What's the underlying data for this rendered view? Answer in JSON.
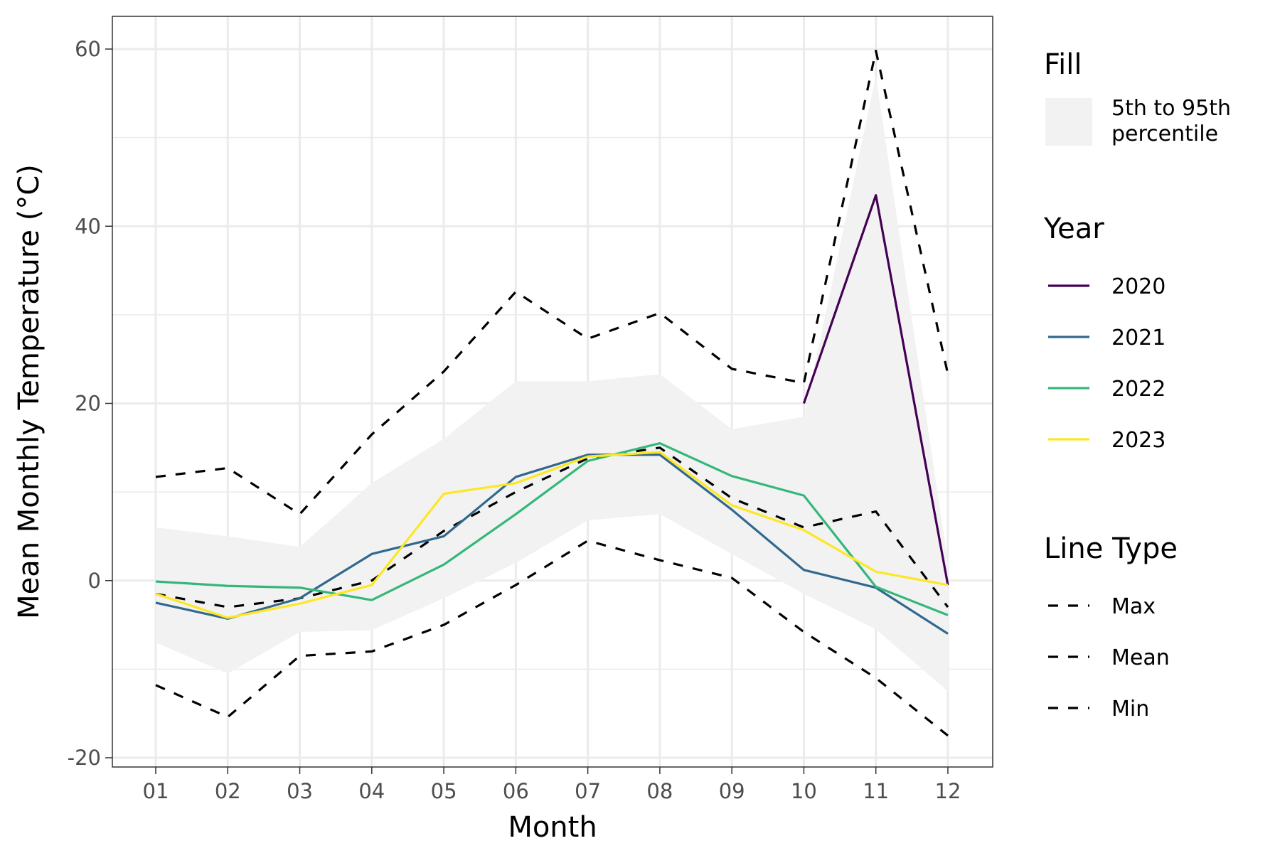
{
  "chart_data": {
    "type": "line",
    "xlabel": "Month",
    "ylabel": "Mean Monthly Temperature (°C)",
    "categories": [
      "01",
      "02",
      "03",
      "04",
      "05",
      "06",
      "07",
      "08",
      "09",
      "10",
      "11",
      "12"
    ],
    "ylim": [
      -21.5,
      64
    ],
    "y_ticks": [
      -20,
      0,
      20,
      40,
      60
    ],
    "y_tick_labels": [
      "-20",
      "0",
      "20",
      "40",
      "60"
    ],
    "grid": true,
    "legend_position": "right",
    "band": {
      "label": "5th to 95th\npercentile",
      "color": "#f2f2f2",
      "lower": [
        -7,
        -10.5,
        -5.8,
        -5.6,
        -2,
        2,
        6.8,
        7.5,
        3,
        -1.5,
        -5.5,
        -12.5
      ],
      "upper": [
        6,
        5,
        3.8,
        11,
        16,
        22.5,
        22.5,
        23.3,
        17.1,
        18.5,
        57,
        2
      ]
    },
    "reference_series": [
      {
        "name": "Max",
        "values": [
          11.7,
          12.7,
          7.5,
          16.5,
          23.6,
          32.6,
          27.3,
          30.2,
          23.9,
          22.3,
          59.8,
          23.3
        ]
      },
      {
        "name": "Mean",
        "values": [
          -1.5,
          -3,
          -2,
          0,
          5.6,
          10,
          13.8,
          15,
          9.3,
          6,
          7.8,
          -3
        ]
      },
      {
        "name": "Min",
        "values": [
          -11.8,
          -15.4,
          -8.5,
          -8,
          -5,
          -0.5,
          4.5,
          2.3,
          0.3,
          -5.8,
          -11,
          -17.5
        ]
      }
    ],
    "series": [
      {
        "name": "2020",
        "color": "#440154",
        "values": [
          null,
          null,
          null,
          null,
          null,
          null,
          null,
          null,
          null,
          20,
          43.5,
          -0.5
        ]
      },
      {
        "name": "2021",
        "color": "#31688e",
        "values": [
          -2.5,
          -4.3,
          -2,
          3,
          5,
          11.7,
          14.2,
          14.2,
          8,
          1.2,
          -0.8,
          -6
        ]
      },
      {
        "name": "2022",
        "color": "#35b779",
        "values": [
          -0.1,
          -0.6,
          -0.8,
          -2.2,
          1.8,
          7.5,
          13.5,
          15.5,
          11.8,
          9.6,
          -0.7,
          -3.9
        ]
      },
      {
        "name": "2023",
        "color": "#fde725",
        "values": [
          -1.5,
          -4.2,
          -2.6,
          -0.5,
          9.8,
          11,
          14,
          14.5,
          8.5,
          5.7,
          1,
          -0.5
        ]
      }
    ],
    "legend": {
      "fill_title": "Fill",
      "year_title": "Year",
      "linetype_title": "Line Type"
    }
  }
}
